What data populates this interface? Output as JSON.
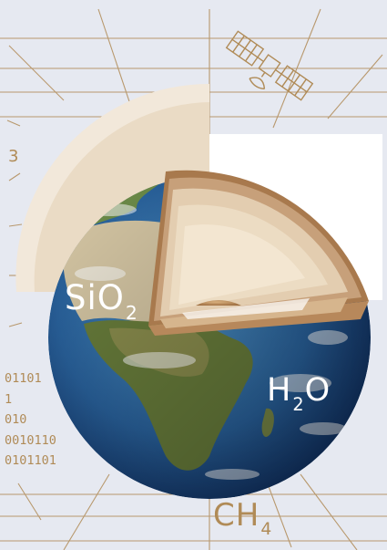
{
  "labels": {
    "sio2_main": "SiO",
    "sio2_sub": "2",
    "h2o_h": "H",
    "h2o_sub": "2",
    "h2o_o": "O",
    "ch4_main": "CH",
    "ch4_sub": "4",
    "digit": "3"
  },
  "binary_lines": [
    "01101",
    "1",
    "010",
    "0010110",
    "0101101"
  ],
  "colors": {
    "background": "#e6e9f1",
    "line_gold": "#b08b57",
    "crust_dark": "#b8875a",
    "mantle_light": "#e9d8c0",
    "core": "#a87a4e",
    "ocean": "#2f6fa8",
    "land_desert": "#d4c7a6",
    "land_green": "#5b7a3a"
  },
  "icons": {
    "satellite": "satellite-icon",
    "globe": "globe-cutaway-icon"
  }
}
